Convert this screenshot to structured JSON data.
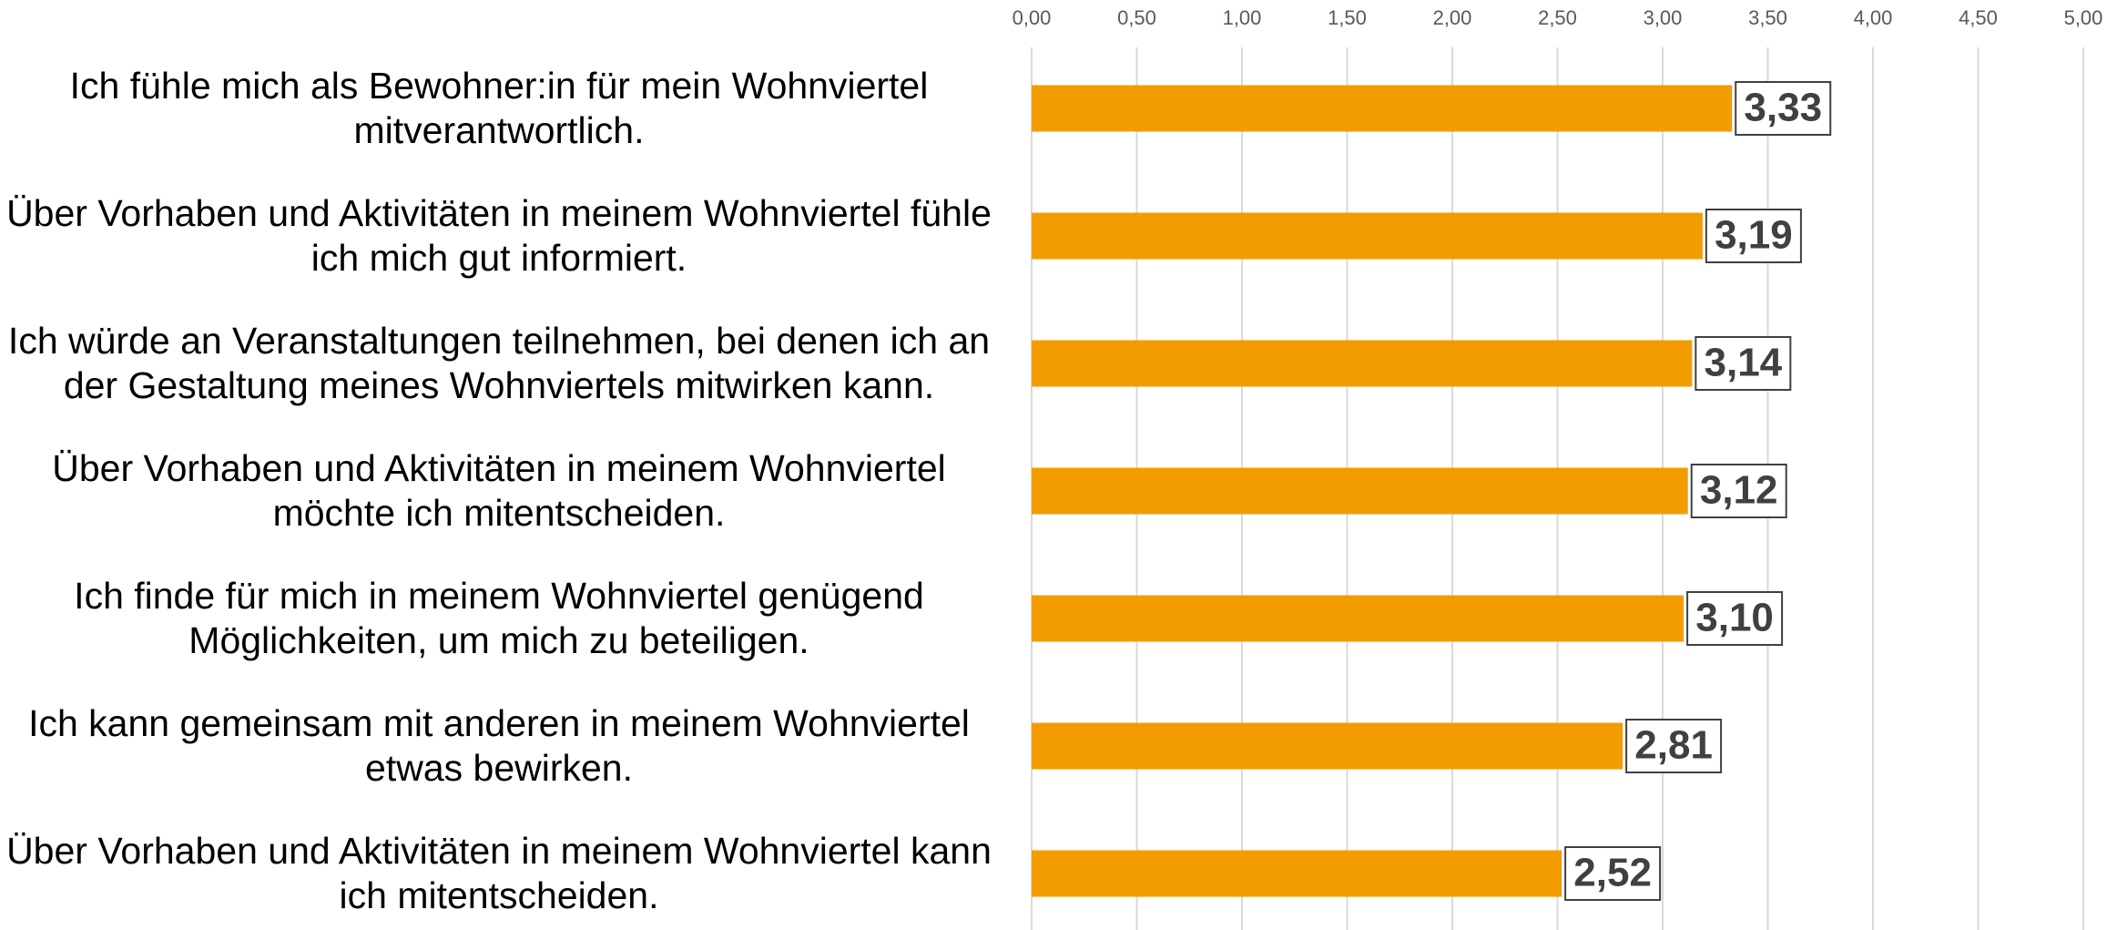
{
  "chart_data": {
    "type": "hbar",
    "categories": [
      "Ich fühle mich als Bewohner:in für mein Wohnviertel mitverantwortlich.",
      "Über Vorhaben und Aktivitäten in meinem Wohnviertel fühle ich mich gut informiert.",
      "Ich würde an Veranstaltungen teilnehmen, bei denen ich an der Gestaltung meines Wohnviertels mitwirken kann.",
      "Über Vorhaben und Aktivitäten in meinem Wohnviertel möchte ich mitentscheiden.",
      "Ich finde für mich in meinem Wohnviertel genügend Möglichkeiten, um mich zu beteiligen.",
      "Ich kann gemeinsam mit anderen in meinem Wohnviertel etwas bewirken.",
      "Über Vorhaben und Aktivitäten in meinem Wohnviertel kann ich mitentscheiden."
    ],
    "values": [
      3.33,
      3.19,
      3.14,
      3.12,
      3.1,
      2.81,
      2.52
    ],
    "value_labels": [
      "3,33",
      "3,19",
      "3,14",
      "3,12",
      "3,10",
      "2,81",
      "2,52"
    ],
    "color": "#f39c00",
    "xlim": [
      0,
      5
    ],
    "xticks": [
      {
        "value": 0,
        "label": "0,00"
      },
      {
        "value": 0.5,
        "label": "0,50"
      },
      {
        "value": 1,
        "label": "1,00"
      },
      {
        "value": 1.5,
        "label": "1,50"
      },
      {
        "value": 2,
        "label": "2,00"
      },
      {
        "value": 2.5,
        "label": "2,50"
      },
      {
        "value": 3,
        "label": "3,00"
      },
      {
        "value": 3.5,
        "label": "3,50"
      },
      {
        "value": 4,
        "label": "4,00"
      },
      {
        "value": 4.5,
        "label": "4,50"
      },
      {
        "value": 5,
        "label": "5,00"
      }
    ],
    "grid": true
  }
}
